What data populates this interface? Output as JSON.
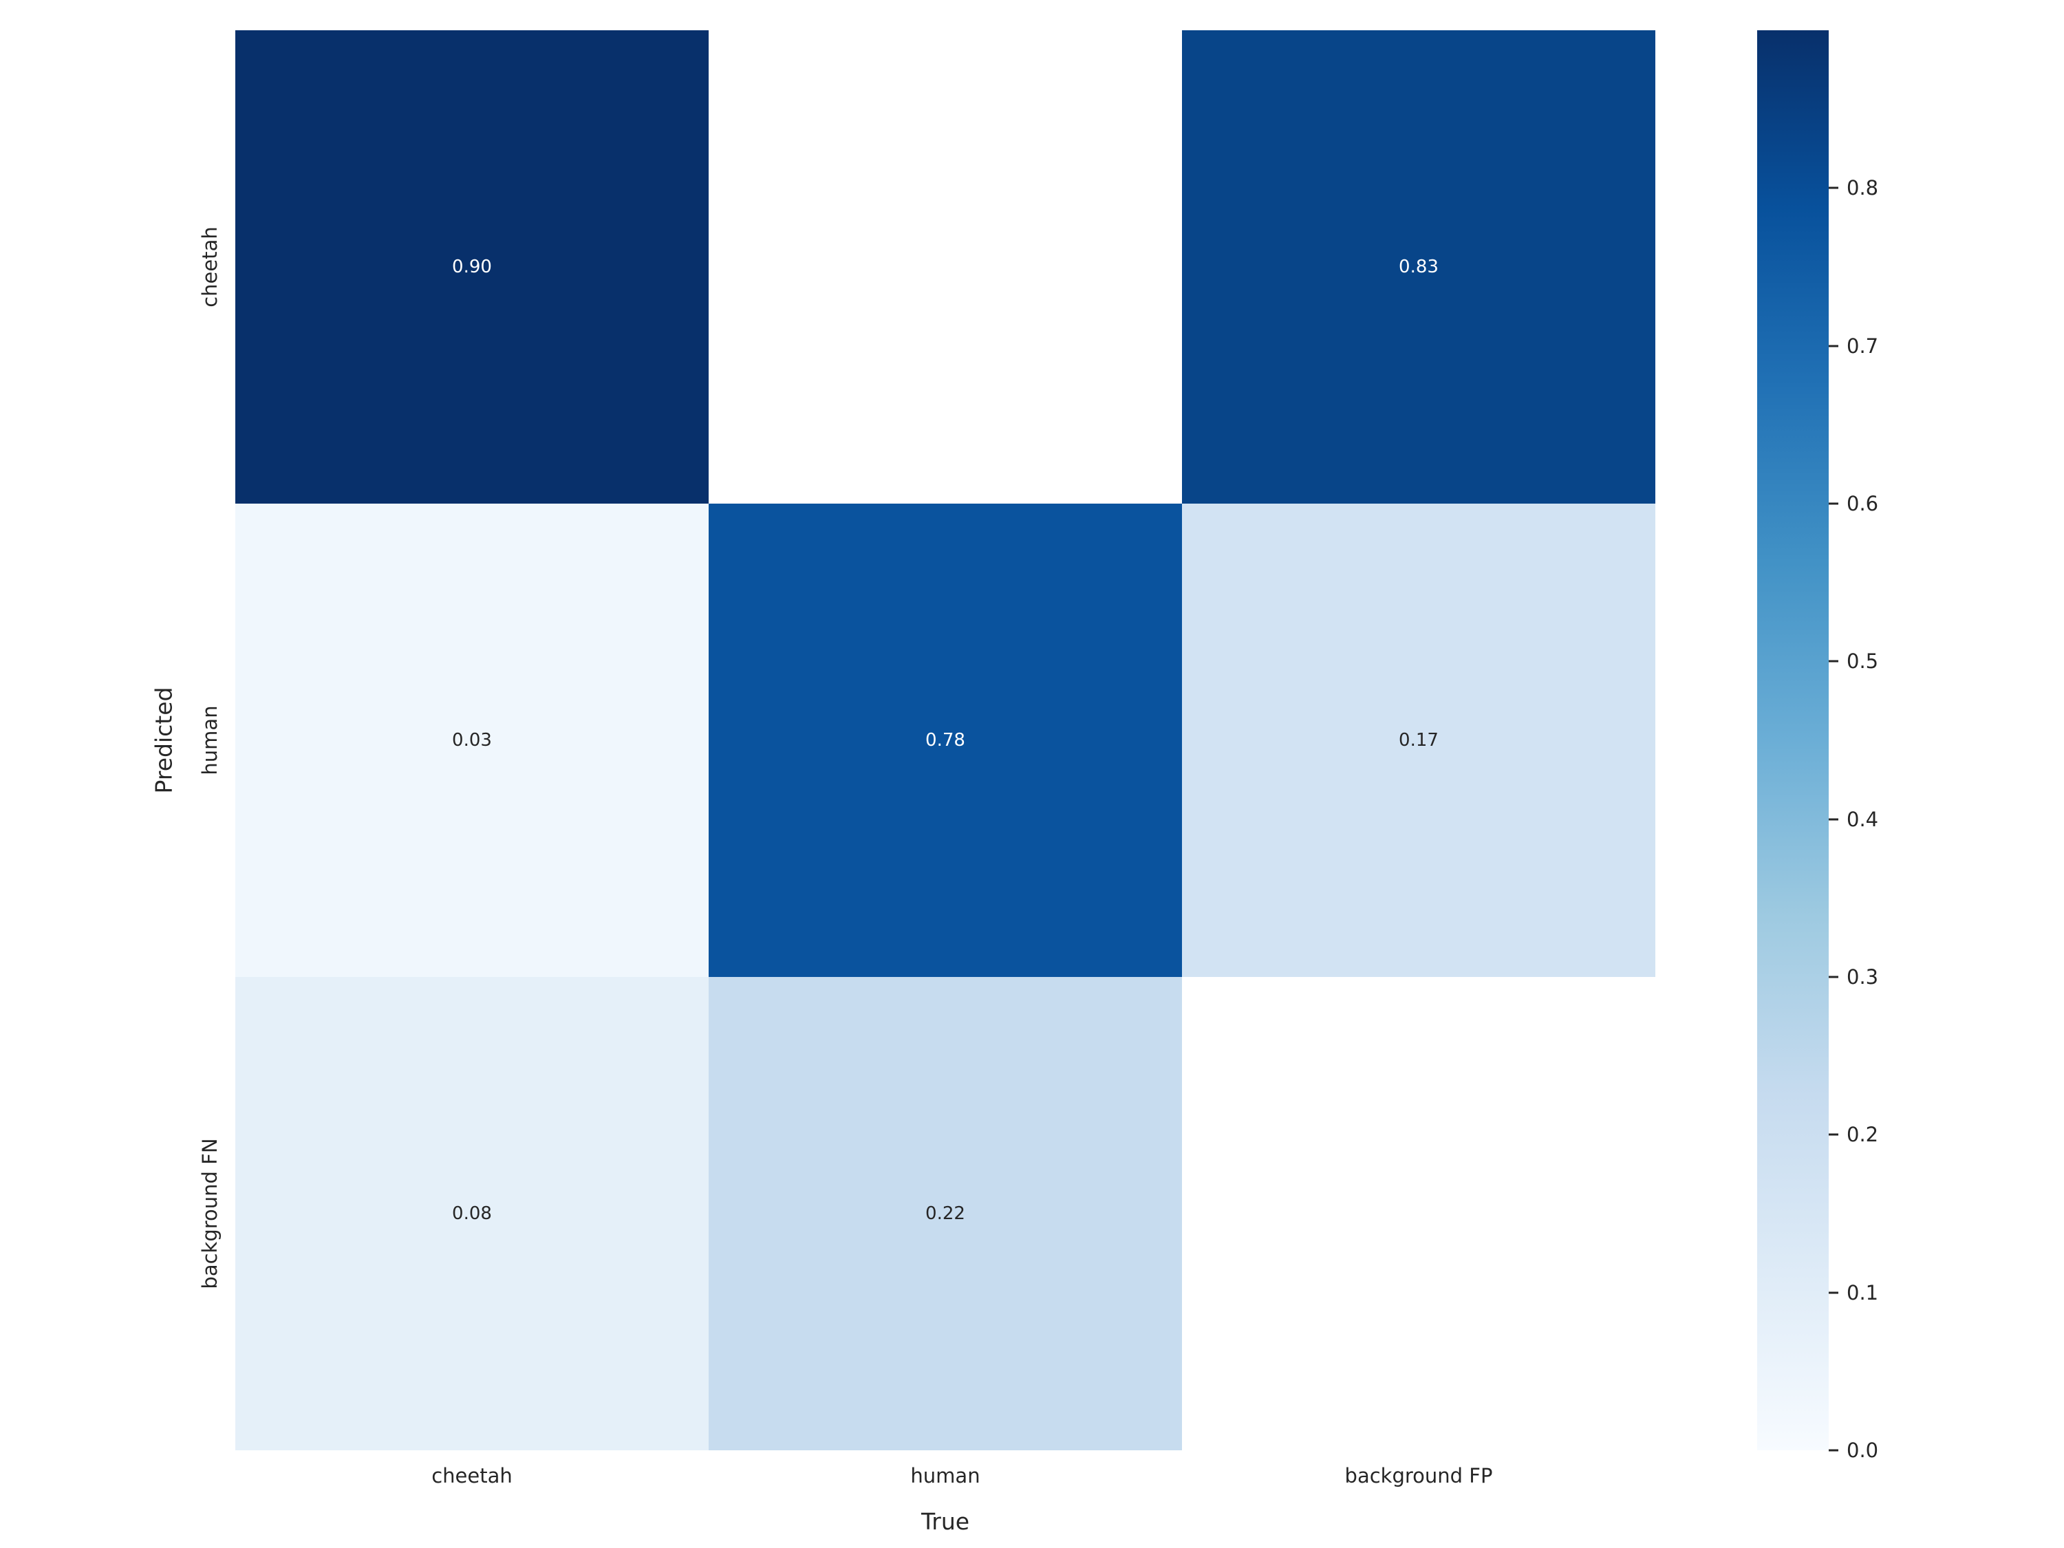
{
  "chart_data": {
    "type": "heatmap",
    "title": "",
    "xlabel": "True",
    "ylabel": "Predicted",
    "x_categories": [
      "cheetah",
      "human",
      "background FP"
    ],
    "y_categories": [
      "cheetah",
      "human",
      "background FN"
    ],
    "values": [
      [
        0.9,
        null,
        0.83
      ],
      [
        0.03,
        0.78,
        0.17
      ],
      [
        0.08,
        0.22,
        null
      ]
    ],
    "cell_labels": [
      [
        "0.90",
        "",
        "0.83"
      ],
      [
        "0.03",
        "0.78",
        "0.17"
      ],
      [
        "0.08",
        "0.22",
        ""
      ]
    ],
    "colormap": "Blues",
    "vmin": 0.0,
    "vmax": 0.9,
    "grid": false,
    "legend_position": "right-colorbar",
    "colorbar_ticks": [
      0.8,
      0.7,
      0.6,
      0.5,
      0.4,
      0.3,
      0.2,
      0.1,
      0.0
    ],
    "colorbar_tick_labels": [
      "0.8",
      "0.7",
      "0.6",
      "0.5",
      "0.4",
      "0.3",
      "0.2",
      "0.1",
      "0.0"
    ],
    "colormap_anchor_colors": [
      "#f7fbff",
      "#deebf7",
      "#c6dbef",
      "#9ecae1",
      "#6baed6",
      "#4292c6",
      "#2171b5",
      "#08519c",
      "#08306b"
    ],
    "annotation_color_on_dark": "#ffffff",
    "annotation_color_on_light": "#262626",
    "nan_cell_color": "#ffffff"
  }
}
